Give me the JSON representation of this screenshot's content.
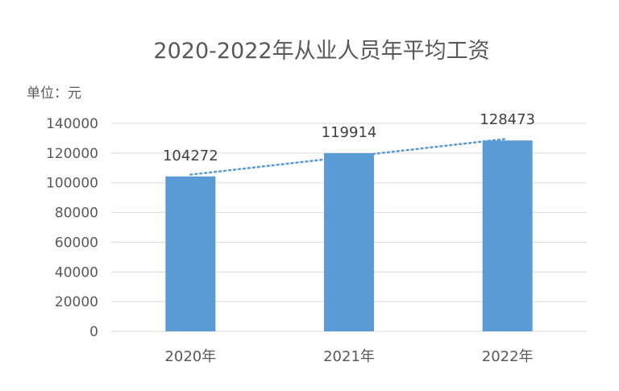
{
  "chart_data": {
    "type": "bar",
    "title": "2020-2022年从业人员年平均工资",
    "unit_label": "单位：元",
    "categories": [
      "2020年",
      "2021年",
      "2022年"
    ],
    "values": [
      104272,
      119914,
      128473
    ],
    "data_labels": [
      "104272",
      "119914",
      "128473"
    ],
    "ylim": [
      0,
      140000
    ],
    "y_ticks": [
      0,
      20000,
      40000,
      60000,
      80000,
      100000,
      120000,
      140000
    ],
    "y_tick_labels": [
      "0",
      "20000",
      "40000",
      "60000",
      "80000",
      "100000",
      "120000",
      "140000"
    ],
    "grid": true,
    "trendline": {
      "type": "linear",
      "style": "dotted"
    },
    "colors": {
      "bar": "#5b9bd5",
      "trendline": "#5b9bd5",
      "grid": "#d9d9d9",
      "text": "#595959"
    }
  }
}
